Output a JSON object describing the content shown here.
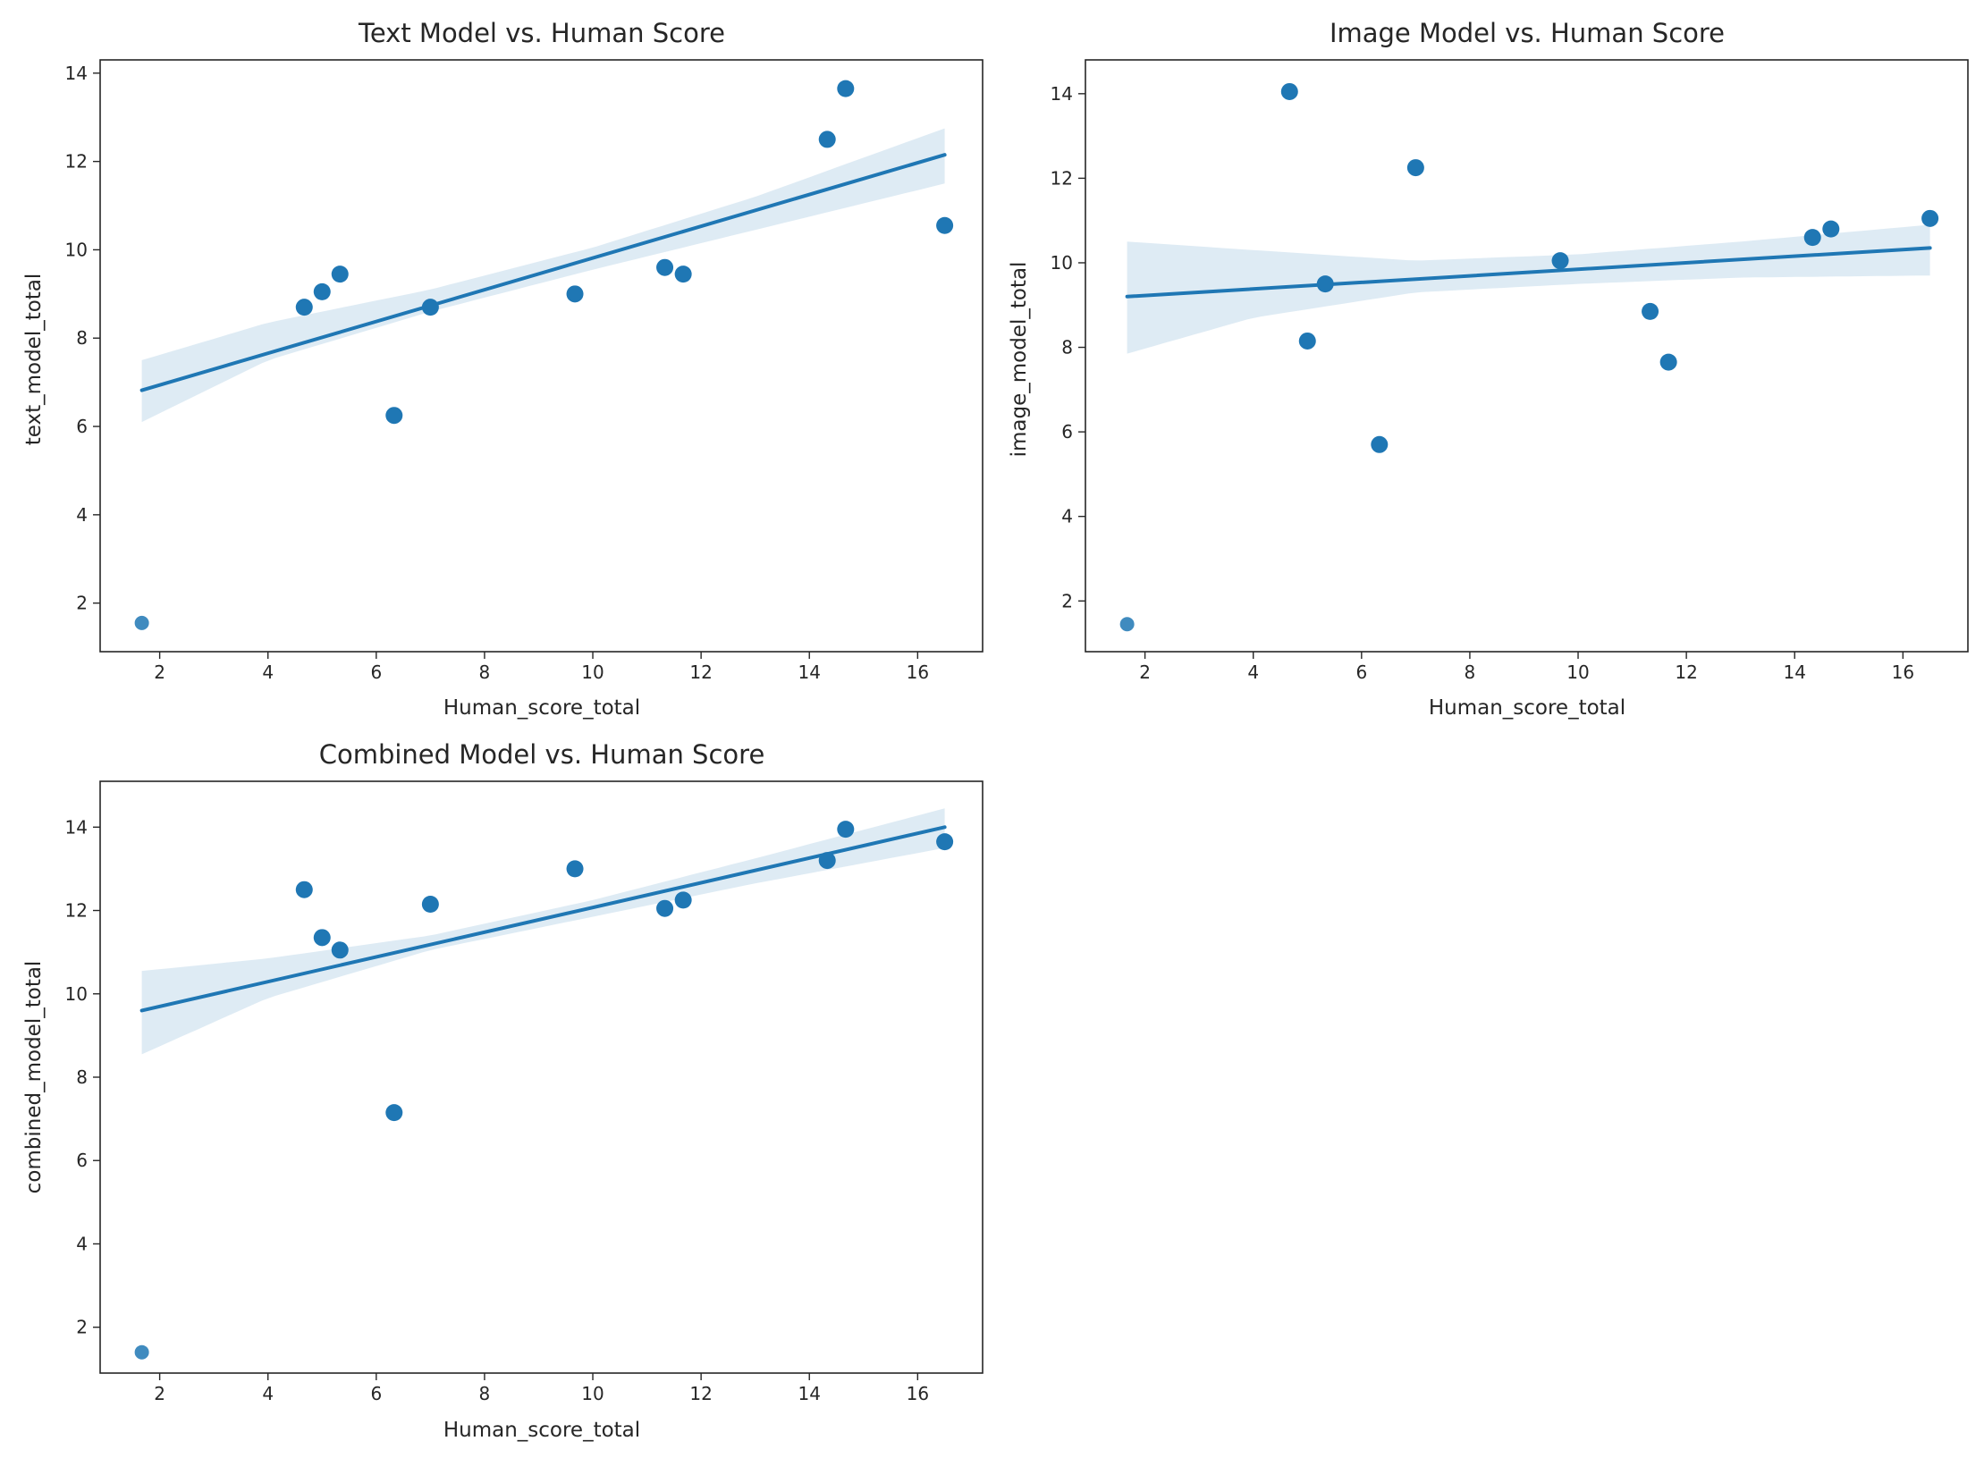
{
  "chart_data": [
    {
      "type": "scatter",
      "title": "Text Model vs. Human Score",
      "xlabel": "Human_score_total",
      "ylabel": "text_model_total",
      "xlim": [
        0.9,
        17.2
      ],
      "ylim": [
        0.9,
        14.3
      ],
      "xticks": [
        2,
        4,
        6,
        8,
        10,
        12,
        14,
        16
      ],
      "yticks": [
        2,
        4,
        6,
        8,
        10,
        12,
        14
      ],
      "points": [
        {
          "x": 1.67,
          "y": 1.55
        },
        {
          "x": 4.67,
          "y": 8.7
        },
        {
          "x": 5.0,
          "y": 9.05
        },
        {
          "x": 5.33,
          "y": 9.45
        },
        {
          "x": 6.33,
          "y": 6.25
        },
        {
          "x": 7.0,
          "y": 8.7
        },
        {
          "x": 9.67,
          "y": 9.0
        },
        {
          "x": 11.33,
          "y": 9.6
        },
        {
          "x": 11.67,
          "y": 9.45
        },
        {
          "x": 14.33,
          "y": 12.5
        },
        {
          "x": 14.67,
          "y": 13.65
        },
        {
          "x": 16.5,
          "y": 10.55
        }
      ],
      "regression": {
        "x": [
          1.67,
          16.5
        ],
        "y": [
          6.82,
          12.15
        ]
      },
      "ci_band": {
        "x": [
          1.67,
          4,
          7,
          10,
          13,
          16.5
        ],
        "lower": [
          6.1,
          7.5,
          8.6,
          9.55,
          10.45,
          11.5
        ],
        "upper": [
          7.5,
          8.35,
          9.1,
          10.05,
          11.2,
          12.75
        ]
      }
    },
    {
      "type": "scatter",
      "title": "Image Model vs. Human Score",
      "xlabel": "Human_score_total",
      "ylabel": "image_model_total",
      "xlim": [
        0.9,
        17.2
      ],
      "ylim": [
        0.8,
        14.8
      ],
      "xticks": [
        2,
        4,
        6,
        8,
        10,
        12,
        14,
        16
      ],
      "yticks": [
        2,
        4,
        6,
        8,
        10,
        12,
        14
      ],
      "points": [
        {
          "x": 1.67,
          "y": 1.45
        },
        {
          "x": 4.67,
          "y": 14.05
        },
        {
          "x": 5.0,
          "y": 8.15
        },
        {
          "x": 5.33,
          "y": 9.5
        },
        {
          "x": 6.33,
          "y": 5.7
        },
        {
          "x": 7.0,
          "y": 12.25
        },
        {
          "x": 9.67,
          "y": 10.05
        },
        {
          "x": 11.33,
          "y": 8.85
        },
        {
          "x": 11.67,
          "y": 7.65
        },
        {
          "x": 14.33,
          "y": 10.6
        },
        {
          "x": 14.67,
          "y": 10.8
        },
        {
          "x": 16.5,
          "y": 11.05
        }
      ],
      "regression": {
        "x": [
          1.67,
          16.5
        ],
        "y": [
          9.2,
          10.35
        ]
      },
      "ci_band": {
        "x": [
          1.67,
          4,
          7,
          10,
          13,
          16.5
        ],
        "lower": [
          7.85,
          8.7,
          9.3,
          9.5,
          9.65,
          9.7
        ],
        "upper": [
          10.5,
          10.3,
          10.05,
          10.2,
          10.5,
          10.9
        ]
      }
    },
    {
      "type": "scatter",
      "title": "Combined Model vs. Human Score",
      "xlabel": "Human_score_total",
      "ylabel": "combined_model_total",
      "xlim": [
        0.9,
        17.2
      ],
      "ylim": [
        0.9,
        15.1
      ],
      "xticks": [
        2,
        4,
        6,
        8,
        10,
        12,
        14,
        16
      ],
      "yticks": [
        2,
        4,
        6,
        8,
        10,
        12,
        14
      ],
      "points": [
        {
          "x": 1.67,
          "y": 1.4
        },
        {
          "x": 4.67,
          "y": 12.5
        },
        {
          "x": 5.0,
          "y": 11.35
        },
        {
          "x": 5.33,
          "y": 11.05
        },
        {
          "x": 6.33,
          "y": 7.15
        },
        {
          "x": 7.0,
          "y": 12.15
        },
        {
          "x": 9.67,
          "y": 13.0
        },
        {
          "x": 11.33,
          "y": 12.05
        },
        {
          "x": 11.67,
          "y": 12.25
        },
        {
          "x": 14.33,
          "y": 13.2
        },
        {
          "x": 14.67,
          "y": 13.95
        },
        {
          "x": 16.5,
          "y": 13.65
        }
      ],
      "regression": {
        "x": [
          1.67,
          16.5
        ],
        "y": [
          9.6,
          14.0
        ]
      },
      "ci_band": {
        "x": [
          1.67,
          4,
          7,
          10,
          13,
          16.5
        ],
        "lower": [
          8.55,
          9.9,
          11.05,
          11.85,
          12.65,
          13.5
        ],
        "upper": [
          10.55,
          10.85,
          11.4,
          12.25,
          13.25,
          14.45
        ]
      }
    }
  ],
  "colors": {
    "point": "#1f77b4",
    "line": "#1f77b4",
    "band": "#1f77b4",
    "axes": "#262626"
  }
}
